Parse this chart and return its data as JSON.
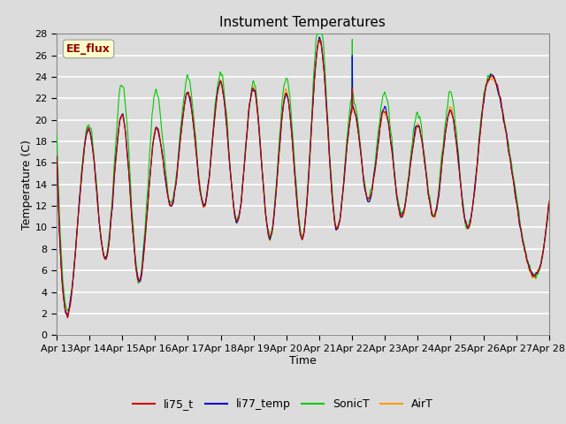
{
  "title": "Instument Temperatures",
  "xlabel": "Time",
  "ylabel": "Temperature (C)",
  "ylim": [
    0,
    28
  ],
  "yticks": [
    0,
    2,
    4,
    6,
    8,
    10,
    12,
    14,
    16,
    18,
    20,
    22,
    24,
    26,
    28
  ],
  "xtick_labels": [
    "Apr 13",
    "Apr 14",
    "Apr 15",
    "Apr 16",
    "Apr 17",
    "Apr 18",
    "Apr 19",
    "Apr 20",
    "Apr 21",
    "Apr 22",
    "Apr 23",
    "Apr 24",
    "Apr 25",
    "Apr 26",
    "Apr 27",
    "Apr 28"
  ],
  "colors": {
    "li75_t": "#cc0000",
    "li77_temp": "#0000cc",
    "SonicT": "#00cc00",
    "AirT": "#ff9900"
  },
  "annotation_text": "EE_flux",
  "annotation_color": "#990000",
  "annotation_bg": "#ffffcc",
  "plot_bg": "#dcdcdc",
  "fig_bg": "#dcdcdc",
  "title_fontsize": 11,
  "axis_fontsize": 9,
  "tick_fontsize": 8,
  "legend_fontsize": 9,
  "n_days": 15,
  "pts_per_day": 96,
  "seed": 12345,
  "daily_peaks": [
    17.5,
    5.2,
    19.0,
    7.0,
    20.5,
    5.0,
    19.0,
    12.0,
    22.5,
    12.0,
    23.5,
    10.5,
    23.0,
    9.0,
    22.5,
    9.0,
    27.5,
    10.0,
    21.0,
    12.5,
    21.0,
    11.0,
    19.5,
    11.0,
    21.0,
    10.0,
    21.5,
    22.0,
    12.5
  ],
  "sonic_extra": [
    1.5,
    0.5,
    0.5,
    1.0,
    3.0,
    1.0,
    3.5,
    1.0,
    1.5,
    1.0,
    1.0,
    0.5,
    0.5,
    0.5,
    1.5,
    0.5,
    2.0,
    0.5,
    1.0,
    1.5,
    1.5,
    1.0,
    1.0,
    0.5,
    1.5,
    0.5,
    0.5,
    1.5,
    0.5
  ]
}
